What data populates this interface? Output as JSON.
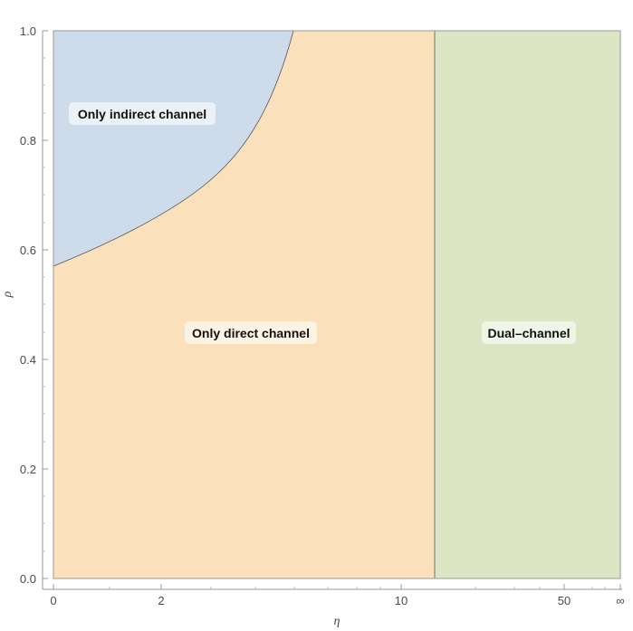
{
  "chart_data": {
    "type": "region",
    "title": "",
    "xlabel": "η",
    "ylabel": "ρ",
    "x_ticks": [
      "0",
      "2",
      "10",
      "50",
      "∞"
    ],
    "y_ticks": [
      "0.0",
      "0.2",
      "0.4",
      "0.6",
      "0.8",
      "1.0"
    ],
    "ylim": [
      0,
      1
    ],
    "regions": [
      {
        "name": "Only indirect channel",
        "color": "#cddbea"
      },
      {
        "name": "Only direct channel",
        "color": "#fbe0bc"
      },
      {
        "name": "Dual–channel",
        "color": "#dce6c4"
      }
    ],
    "boundary_curve": {
      "description_points": [
        {
          "x": "0",
          "y": 0.572
        },
        {
          "x": "2",
          "y": 0.665
        },
        {
          "x": "~4.5",
          "y": 1.0
        }
      ]
    },
    "vertical_boundary_x": "~13"
  }
}
